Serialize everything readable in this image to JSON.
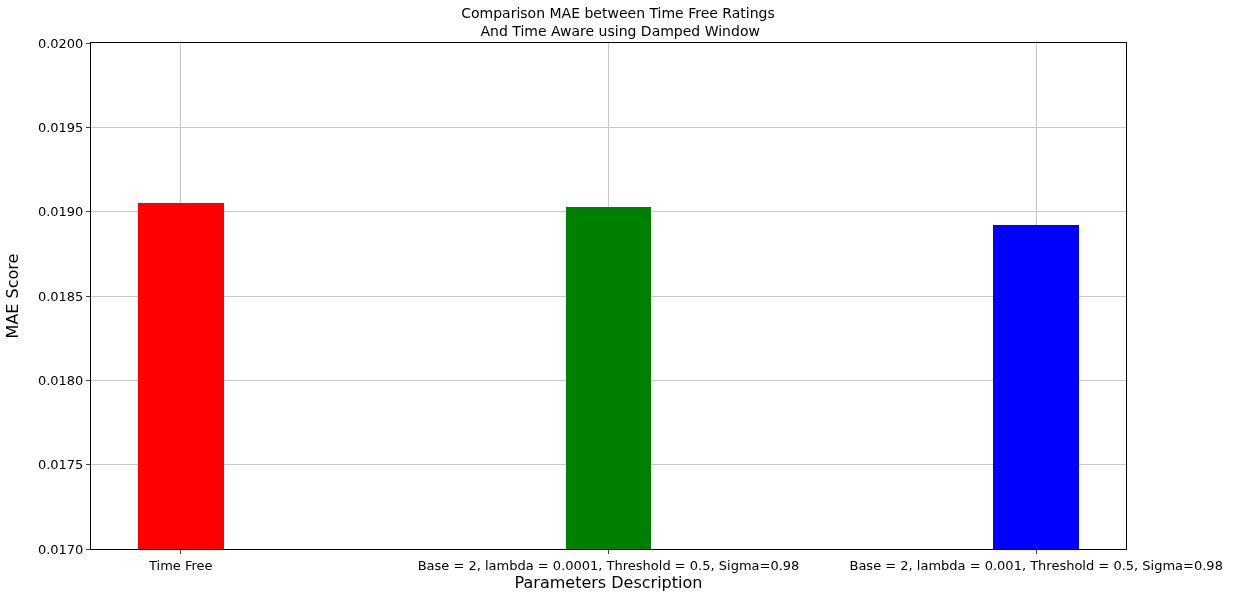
{
  "chart_data": {
    "type": "bar",
    "title": "Comparison MAE between Time Free Ratings\n And Time Aware using Damped Window",
    "xlabel": "Parameters Description",
    "ylabel": "MAE Score",
    "categories": [
      "Time Free",
      "Base = 2, lambda = 0.0001, Threshold = 0.5, Sigma=0.98",
      "Base = 2, lambda = 0.001, Threshold = 0.5, Sigma=0.98"
    ],
    "values": [
      0.01905,
      0.01903,
      0.01892
    ],
    "colors": [
      "#ff0000",
      "#008000",
      "#0000ff"
    ],
    "ylim": [
      0.017,
      0.02
    ],
    "yticks": [
      {
        "value": 0.017,
        "label": "0.0170"
      },
      {
        "value": 0.0175,
        "label": "0.0175"
      },
      {
        "value": 0.018,
        "label": "0.0180"
      },
      {
        "value": 0.0185,
        "label": "0.0185"
      },
      {
        "value": 0.019,
        "label": "0.0190"
      },
      {
        "value": 0.0195,
        "label": "0.0195"
      },
      {
        "value": 0.02,
        "label": "0.0200"
      }
    ],
    "grid": true
  }
}
